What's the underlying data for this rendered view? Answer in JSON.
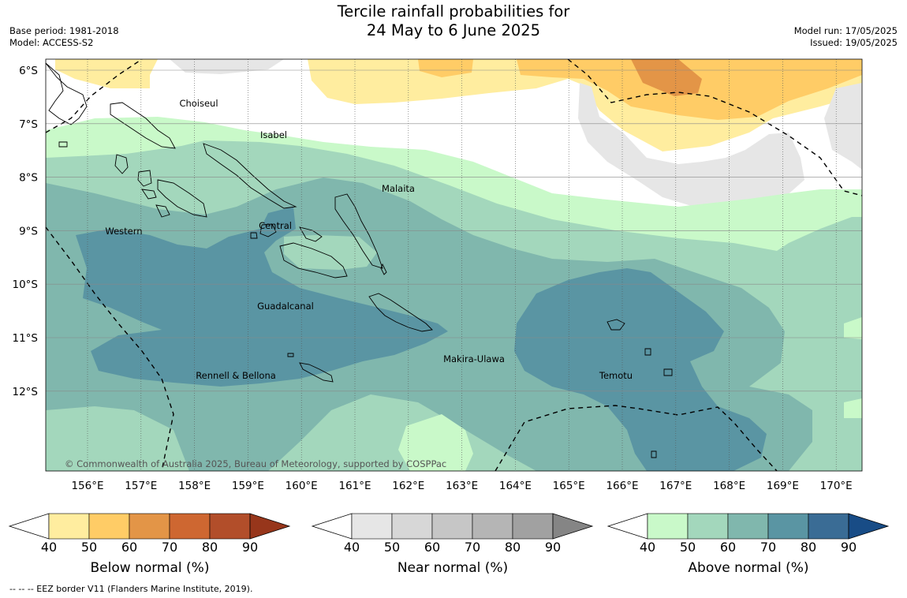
{
  "title": {
    "line1": "Tercile rainfall probabilities for",
    "line2": "24 May to 6 June 2025"
  },
  "meta": {
    "base_period": "Base period: 1981-2018",
    "model": "Model: ACCESS-S2",
    "model_run": "Model run: 17/05/2025",
    "issued": "Issued: 19/05/2025"
  },
  "map": {
    "lat_labels": [
      "6°S",
      "7°S",
      "8°S",
      "9°S",
      "10°S",
      "11°S",
      "12°S"
    ],
    "lon_labels": [
      "156°E",
      "157°E",
      "158°E",
      "159°E",
      "160°E",
      "161°E",
      "162°E",
      "163°E",
      "164°E",
      "165°E",
      "166°E",
      "167°E",
      "168°E",
      "169°E",
      "170°E"
    ],
    "regions": [
      "Choiseul",
      "Isabel",
      "Malaita",
      "Western",
      "Central",
      "Guadalcanal",
      "Makira-Ulawa",
      "Rennell & Bellona",
      "Temotu"
    ],
    "copyright": "© Commonwealth of Australia 2025, Bureau of Meteorology, supported by COSPPac"
  },
  "colorbars": [
    {
      "label": "Below normal (%)",
      "ticks": [
        "40",
        "50",
        "60",
        "70",
        "80",
        "90"
      ],
      "colors": [
        "#ffffff",
        "#ffed9f",
        "#ffcc66",
        "#e39547",
        "#ce6731",
        "#b24e2a",
        "#97361b"
      ]
    },
    {
      "label": "Near normal (%)",
      "ticks": [
        "40",
        "50",
        "60",
        "70",
        "80",
        "90"
      ],
      "colors": [
        "#ffffff",
        "#e6e6e6",
        "#d7d7d7",
        "#c6c6c6",
        "#b5b5b5",
        "#a1a1a1",
        "#858585"
      ]
    },
    {
      "label": "Above normal (%)",
      "ticks": [
        "40",
        "50",
        "60",
        "70",
        "80",
        "90"
      ],
      "colors": [
        "#ffffff",
        "#c9f9c9",
        "#a3d7bc",
        "#80b7ad",
        "#5a95a3",
        "#3a6c95",
        "#184c86"
      ]
    }
  ],
  "footnote": "-- -- -- EEZ border V11 (Flanders Marine Institute, 2019)."
}
